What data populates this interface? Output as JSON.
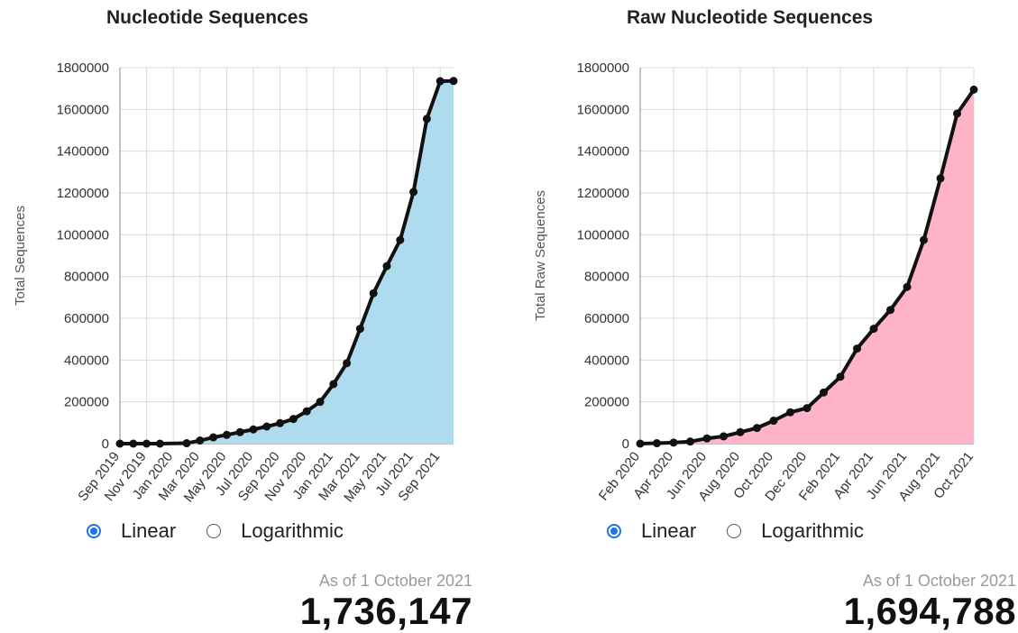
{
  "chart_data": [
    {
      "type": "area",
      "title": "Nucleotide Sequences",
      "ylabel": "Total Sequences",
      "xlabel": "",
      "ylim": [
        0,
        1800000
      ],
      "yticks": [
        "1800000",
        "1600000",
        "1400000",
        "1200000",
        "1000000",
        "800000",
        "600000",
        "400000",
        "200000",
        "0"
      ],
      "xticks": [
        "Sep 2019",
        "Nov 2019",
        "Jan 2020",
        "Mar 2020",
        "May 2020",
        "Jul 2020",
        "Sep 2020",
        "Nov 2020",
        "Jan 2021",
        "Mar 2021",
        "May 2021",
        "Jul 2021",
        "Sep 2021"
      ],
      "grid": true,
      "fill_color": "#aedcee",
      "line_color": "#111111",
      "series": [
        {
          "x": [
            "Sep 2019",
            "Oct 2019",
            "Nov 2019",
            "Dec 2019",
            "Feb 2020",
            "Mar 2020",
            "Apr 2020",
            "May 2020",
            "Jun 2020",
            "Jul 2020",
            "Aug 2020",
            "Sep 2020",
            "Oct 2020",
            "Nov 2020",
            "Dec 2020",
            "Jan 2021",
            "Feb 2021",
            "Mar 2021",
            "Apr 2021",
            "May 2021",
            "Jun 2021",
            "Jul 2021",
            "Aug 2021",
            "Sep 2021",
            "Oct 2021"
          ],
          "values": [
            0,
            0,
            0,
            0,
            2000,
            15000,
            30000,
            42000,
            55000,
            68000,
            82000,
            98000,
            118000,
            155000,
            200000,
            285000,
            385000,
            550000,
            720000,
            850000,
            975000,
            1205000,
            1555000,
            1735000,
            1736147
          ]
        }
      ]
    },
    {
      "type": "area",
      "title": "Raw Nucleotide Sequences",
      "ylabel": "Total Raw Sequences",
      "xlabel": "",
      "ylim": [
        0,
        1800000
      ],
      "yticks": [
        "1800000",
        "1600000",
        "1400000",
        "1200000",
        "1000000",
        "800000",
        "600000",
        "400000",
        "200000",
        "0"
      ],
      "xticks": [
        "Feb 2020",
        "Apr 2020",
        "Jun 2020",
        "Aug 2020",
        "Oct 2020",
        "Dec 2020",
        "Feb 2021",
        "Apr 2021",
        "Jun 2021",
        "Aug 2021",
        "Oct 2021"
      ],
      "grid": true,
      "fill_color": "#ffb3c6",
      "line_color": "#111111",
      "series": [
        {
          "x": [
            "Feb 2020",
            "Mar 2020",
            "Apr 2020",
            "May 2020",
            "Jun 2020",
            "Jul 2020",
            "Aug 2020",
            "Sep 2020",
            "Oct 2020",
            "Nov 2020",
            "Dec 2020",
            "Jan 2021",
            "Feb 2021",
            "Mar 2021",
            "Apr 2021",
            "May 2021",
            "Jun 2021",
            "Jul 2021",
            "Aug 2021",
            "Sep 2021",
            "Oct 2021"
          ],
          "values": [
            0,
            2000,
            5000,
            10000,
            25000,
            35000,
            55000,
            75000,
            110000,
            150000,
            170000,
            245000,
            320000,
            455000,
            550000,
            640000,
            750000,
            975000,
            1270000,
            1580000,
            1694788
          ]
        }
      ]
    }
  ],
  "controls": [
    {
      "linear_label": "Linear",
      "log_label": "Logarithmic",
      "selected": "Linear"
    },
    {
      "linear_label": "Linear",
      "log_label": "Logarithmic",
      "selected": "Linear"
    }
  ],
  "summary": [
    {
      "as_of": "As of 1 October 2021",
      "total": "1,736,147"
    },
    {
      "as_of": "As of 1 October 2021",
      "total": "1,694,788"
    }
  ]
}
